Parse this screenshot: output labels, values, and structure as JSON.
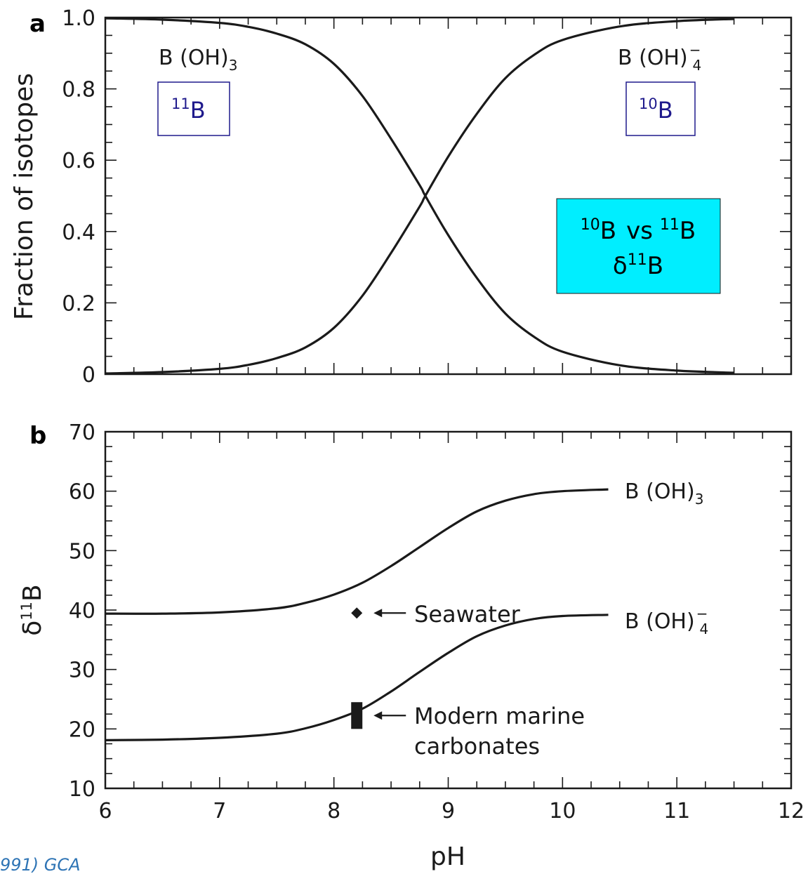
{
  "chart_data": [
    {
      "panel": "a",
      "type": "line",
      "ylabel": "Fraction of isotopes",
      "xlim": [
        6,
        12
      ],
      "ylim": [
        0,
        1
      ],
      "yticks": [
        {
          "value": 0,
          "label": "0"
        },
        {
          "value": 0.2,
          "label": "0.2"
        },
        {
          "value": 0.4,
          "label": "0.4"
        },
        {
          "value": 0.6,
          "label": "0.6"
        },
        {
          "value": 0.8,
          "label": "0.8"
        },
        {
          "value": 1.0,
          "label": "1.0"
        }
      ],
      "series": [
        {
          "name": "B (OH)3",
          "label_base": "B (OH)",
          "label_sub": "3",
          "label_sup": "",
          "x": [
            6.0,
            6.5,
            7.0,
            7.25,
            7.5,
            7.75,
            8.0,
            8.25,
            8.5,
            8.75,
            8.8,
            9.0,
            9.25,
            9.5,
            9.75,
            10.0,
            10.5,
            11.0,
            11.5
          ],
          "y": [
            0.998,
            0.994,
            0.985,
            0.974,
            0.955,
            0.925,
            0.87,
            0.78,
            0.66,
            0.53,
            0.5,
            0.39,
            0.27,
            0.17,
            0.105,
            0.063,
            0.025,
            0.01,
            0.004
          ]
        },
        {
          "name": "B (OH)4−",
          "label_base": "B (OH)",
          "label_sub": "4",
          "label_sup": "−",
          "x": [
            6.0,
            6.5,
            7.0,
            7.25,
            7.5,
            7.75,
            8.0,
            8.25,
            8.5,
            8.75,
            8.8,
            9.0,
            9.25,
            9.5,
            9.75,
            10.0,
            10.5,
            11.0,
            11.5
          ],
          "y": [
            0.002,
            0.006,
            0.015,
            0.026,
            0.045,
            0.075,
            0.13,
            0.22,
            0.34,
            0.47,
            0.5,
            0.61,
            0.73,
            0.83,
            0.895,
            0.937,
            0.975,
            0.99,
            0.996
          ]
        }
      ],
      "boxes": [
        {
          "sup": "11",
          "base": "B"
        },
        {
          "sup": "10",
          "base": "B"
        }
      ],
      "highlight": {
        "line1": {
          "sup_a": "10",
          "base_a": "B",
          "mid": "vs",
          "sup_b": "11",
          "base_b": "B"
        },
        "line2": {
          "pre": "δ",
          "sup": "11",
          "base": "B"
        },
        "color": "#00eeff"
      }
    },
    {
      "panel": "b",
      "type": "line",
      "xlabel": "pH",
      "ylabel_base": "δ",
      "ylabel_sup": "11",
      "ylabel_rest": "B",
      "xlim": [
        6,
        12
      ],
      "ylim": [
        10,
        70
      ],
      "xticks": [
        {
          "value": 6,
          "label": "6"
        },
        {
          "value": 7,
          "label": "7"
        },
        {
          "value": 8,
          "label": "8"
        },
        {
          "value": 9,
          "label": "9"
        },
        {
          "value": 10,
          "label": "10"
        },
        {
          "value": 11,
          "label": "11"
        },
        {
          "value": 12,
          "label": "12"
        }
      ],
      "yticks": [
        {
          "value": 10,
          "label": "10"
        },
        {
          "value": 20,
          "label": "20"
        },
        {
          "value": 30,
          "label": "30"
        },
        {
          "value": 40,
          "label": "40"
        },
        {
          "value": 50,
          "label": "50"
        },
        {
          "value": 60,
          "label": "60"
        },
        {
          "value": 70,
          "label": "70"
        }
      ],
      "series": [
        {
          "name": "B (OH)3",
          "label_base": "B (OH)",
          "label_sub": "3",
          "label_sup": "",
          "x": [
            6.0,
            6.5,
            7.0,
            7.5,
            7.75,
            8.0,
            8.25,
            8.5,
            8.75,
            9.0,
            9.25,
            9.5,
            9.75,
            10.0,
            10.4
          ],
          "y": [
            39.4,
            39.4,
            39.6,
            40.3,
            41.2,
            42.6,
            44.6,
            47.4,
            50.6,
            53.8,
            56.6,
            58.4,
            59.5,
            60.0,
            60.3
          ]
        },
        {
          "name": "B (OH)4−",
          "label_base": "B (OH)",
          "label_sub": "4",
          "label_sup": "−",
          "x": [
            6.0,
            6.5,
            7.0,
            7.5,
            7.75,
            8.0,
            8.25,
            8.5,
            8.75,
            9.0,
            9.25,
            9.5,
            9.75,
            10.0,
            10.4
          ],
          "y": [
            18.1,
            18.2,
            18.5,
            19.2,
            20.1,
            21.5,
            23.4,
            26.3,
            29.6,
            32.8,
            35.6,
            37.4,
            38.5,
            39.0,
            39.2
          ]
        }
      ],
      "points": [
        {
          "name": "Seawater",
          "x": 8.2,
          "y": 39.5,
          "label": "Seawater"
        }
      ],
      "ranges": [
        {
          "name": "Modern marine carbonates",
          "x": 8.2,
          "ymin": 20.0,
          "ymax": 24.5,
          "label_line1": "Modern marine",
          "label_line2": "carbonates"
        }
      ]
    }
  ],
  "credit": "991) GCA"
}
